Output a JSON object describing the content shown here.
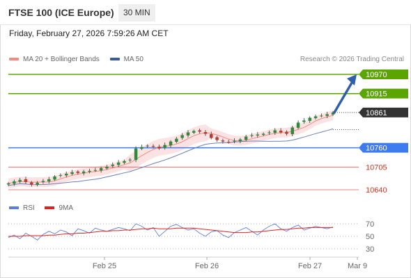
{
  "header": {
    "title": "FTSE 100 (ICE Europe)",
    "interval": "30 MIN",
    "timestamp": "Friday, February 27, 2026 7:59:26 AM CET"
  },
  "legend": {
    "items": [
      {
        "label": "MA 20 + Bollinger Bands",
        "color": "#f28b82"
      },
      {
        "label": "MA 50",
        "color": "#3c5a99"
      }
    ],
    "credit": "Research © 2026 Trading Central"
  },
  "rsi_legend": {
    "items": [
      {
        "label": "RSI",
        "color": "#5b7fd6"
      },
      {
        "label": "9MA",
        "color": "#e02020"
      }
    ]
  },
  "colors": {
    "resistance": "#5aa500",
    "pivot": "#3d7bf0",
    "support": "#e05a5a",
    "last_price": "#333333",
    "candle_up": "#2e8b3a",
    "candle_down": "#c0392b",
    "band_fill": "#fbd9d9",
    "ma20": "#f28b82",
    "ma50": "#6a7fb8",
    "arrow": "#2f5fa8"
  },
  "chart_data": {
    "type": "candlestick",
    "title": "FTSE 100 (ICE Europe)",
    "interval": "30 MIN",
    "ylim": [
      10615,
      11000
    ],
    "last_price": 10861,
    "levels": [
      {
        "value": 10970,
        "label": "10970",
        "kind": "resistance"
      },
      {
        "value": 10915,
        "label": "10915",
        "kind": "resistance"
      },
      {
        "value": 10861,
        "label": "10861",
        "kind": "last"
      },
      {
        "value": 10760,
        "label": "10760",
        "kind": "pivot"
      },
      {
        "value": 10705,
        "label": "10705",
        "kind": "support"
      },
      {
        "value": 10640,
        "label": "10640",
        "kind": "support"
      }
    ],
    "x_ticks": [
      "Feb 25",
      "Feb 26",
      "Feb 27",
      "Mar 9"
    ],
    "ma50_end": 10812,
    "projection": {
      "from": 10861,
      "to": 10970
    },
    "close_path": [
      10658,
      10664,
      10668,
      10662,
      10655,
      10660,
      10665,
      10670,
      10678,
      10682,
      10686,
      10690,
      10688,
      10692,
      10694,
      10696,
      10702,
      10706,
      10712,
      10718,
      10722,
      10726,
      10758,
      10762,
      10766,
      10764,
      10758,
      10768,
      10778,
      10786,
      10796,
      10804,
      10808,
      10806,
      10800,
      10788,
      10782,
      10778,
      10776,
      10780,
      10784,
      10792,
      10796,
      10798,
      10800,
      10804,
      10810,
      10804,
      10800,
      10818,
      10832,
      10838,
      10846,
      10850,
      10852,
      10856,
      10861
    ],
    "rsi": {
      "ylim": [
        20,
        80
      ],
      "ticks": [
        70,
        50,
        30
      ],
      "series": [
        {
          "name": "RSI",
          "values": [
            48,
            52,
            46,
            55,
            50,
            44,
            53,
            58,
            54,
            60,
            57,
            51,
            62,
            59,
            55,
            63,
            60,
            58,
            61,
            64,
            62,
            59,
            70,
            66,
            60,
            64,
            50,
            58,
            66,
            69,
            64,
            60,
            62,
            55,
            50,
            57,
            59,
            52,
            48,
            56,
            60,
            64,
            58,
            52,
            60,
            66,
            70,
            62,
            58,
            64,
            68,
            60,
            63,
            66,
            64,
            62,
            65
          ]
        },
        {
          "name": "9MA",
          "values": [
            50,
            50,
            50,
            51,
            51,
            51,
            51,
            52,
            52,
            53,
            54,
            54,
            55,
            55,
            56,
            57,
            58,
            58,
            59,
            59,
            60,
            60,
            61,
            62,
            62,
            63,
            62,
            62,
            62,
            63,
            63,
            63,
            63,
            62,
            61,
            60,
            59,
            58,
            57,
            56,
            56,
            56,
            57,
            57,
            58,
            59,
            60,
            61,
            61,
            62,
            63,
            63,
            64,
            64,
            64,
            64,
            64
          ]
        }
      ]
    }
  }
}
